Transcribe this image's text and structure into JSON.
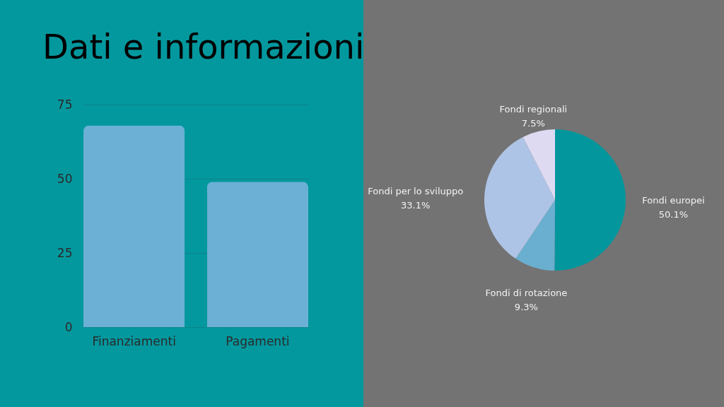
{
  "chart_data": [
    {
      "type": "bar",
      "title": "Dati e informazioni",
      "categories": [
        "Finanziamenti",
        "Pagamenti"
      ],
      "values": [
        68,
        49
      ],
      "color": "#6cb0d6",
      "ylim": [
        0,
        75
      ],
      "yticks": [
        0,
        25,
        50,
        75
      ],
      "grid": "y"
    },
    {
      "type": "pie",
      "categories": [
        "Fondi europei",
        "Fondi di rotazione",
        "Fondi per lo sviluppo",
        "Fondi regionali"
      ],
      "values": [
        50.1,
        9.3,
        33.1,
        7.5
      ],
      "colors": [
        "#03979d",
        "#6aafcf",
        "#aec4e6",
        "#dedaf2"
      ],
      "value_labels": [
        "50.1%",
        "9.3%",
        "33.1%",
        "7.5%"
      ]
    }
  ]
}
